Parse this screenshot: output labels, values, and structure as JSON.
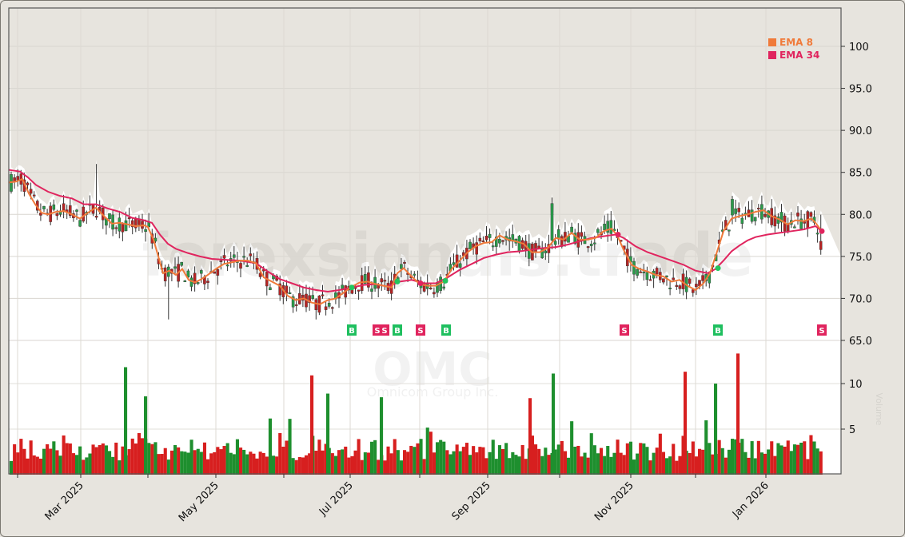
{
  "chart_data": {
    "type": "candlestick",
    "ticker": "OMC",
    "company": "Omnicom Group Inc.",
    "watermark": "forexsignals.trade",
    "x_axis": {
      "tick_labels": [
        "Mar 2025",
        "May 2025",
        "Jul 2025",
        "Sep 2025",
        "Nov 2025",
        "Jan 2026"
      ],
      "range": [
        "Feb 2025",
        "Jan 2026"
      ]
    },
    "price_axis": {
      "ticks": [
        "100",
        "95.0",
        "90.0",
        "85.0",
        "80.0",
        "75.0",
        "70.0",
        "65.0"
      ],
      "ylim": [
        62,
        104
      ]
    },
    "volume_axis": {
      "ticks": [
        "10",
        "5"
      ],
      "label": "Volume"
    },
    "legend": [
      {
        "label": "EMA 8",
        "color": "#f07a3a"
      },
      {
        "label": "EMA 34",
        "color": "#e0245e"
      }
    ],
    "signals": [
      {
        "type": "B",
        "x_label": "early Jul 2025"
      },
      {
        "type": "S",
        "x_label": "mid Jul 2025"
      },
      {
        "type": "S",
        "x_label": "mid Jul 2025"
      },
      {
        "type": "B",
        "x_label": "late Jul 2025"
      },
      {
        "type": "S",
        "x_label": "early Aug 2025"
      },
      {
        "type": "B",
        "x_label": "mid Aug 2025"
      },
      {
        "type": "S",
        "x_label": "late Oct 2025"
      },
      {
        "type": "B",
        "x_label": "early Dec 2025"
      },
      {
        "type": "S",
        "x_label": "late Jan 2026"
      }
    ],
    "ema8": [
      [
        11,
        83.8
      ],
      [
        20,
        83.9
      ],
      [
        28,
        84.2
      ],
      [
        36,
        82.5
      ],
      [
        44,
        81.2
      ],
      [
        52,
        80.2
      ],
      [
        60,
        80.0
      ],
      [
        70,
        80.3
      ],
      [
        80,
        80.4
      ],
      [
        90,
        80.0
      ],
      [
        100,
        79.5
      ],
      [
        110,
        80.2
      ],
      [
        120,
        80.8
      ],
      [
        130,
        79.8
      ],
      [
        140,
        78.9
      ],
      [
        150,
        79.0
      ],
      [
        160,
        78.8
      ],
      [
        170,
        78.6
      ],
      [
        180,
        78.7
      ],
      [
        185,
        78.5
      ],
      [
        192,
        77.0
      ],
      [
        198,
        75.0
      ],
      [
        204,
        73.0
      ],
      [
        212,
        73.3
      ],
      [
        220,
        72.8
      ],
      [
        228,
        73.5
      ],
      [
        236,
        72.2
      ],
      [
        244,
        71.9
      ],
      [
        252,
        72.3
      ],
      [
        260,
        72.8
      ],
      [
        270,
        73.5
      ],
      [
        280,
        74.1
      ],
      [
        290,
        74.3
      ],
      [
        300,
        74.5
      ],
      [
        310,
        74.5
      ],
      [
        320,
        74.2
      ],
      [
        330,
        72.5
      ],
      [
        340,
        72.0
      ],
      [
        350,
        71.5
      ],
      [
        360,
        70.3
      ],
      [
        370,
        69.8
      ],
      [
        380,
        70.0
      ],
      [
        390,
        69.5
      ],
      [
        400,
        69.3
      ],
      [
        410,
        69.8
      ],
      [
        420,
        70.0
      ],
      [
        430,
        70.7
      ],
      [
        440,
        71.4
      ],
      [
        450,
        71.9
      ],
      [
        460,
        72.0
      ],
      [
        470,
        71.7
      ],
      [
        480,
        71.5
      ],
      [
        490,
        71.3
      ],
      [
        497,
        73.0
      ],
      [
        505,
        73.6
      ],
      [
        515,
        72.6
      ],
      [
        525,
        71.7
      ],
      [
        535,
        71.5
      ],
      [
        545,
        71.5
      ],
      [
        555,
        72.0
      ],
      [
        565,
        73.5
      ],
      [
        575,
        74.5
      ],
      [
        585,
        75.5
      ],
      [
        595,
        76.2
      ],
      [
        605,
        76.6
      ],
      [
        615,
        76.7
      ],
      [
        625,
        77.5
      ],
      [
        635,
        77.0
      ],
      [
        645,
        76.8
      ],
      [
        655,
        76.5
      ],
      [
        665,
        75.5
      ],
      [
        675,
        75.5
      ],
      [
        685,
        76.0
      ],
      [
        695,
        77.2
      ],
      [
        705,
        77.0
      ],
      [
        715,
        77.8
      ],
      [
        725,
        77.0
      ],
      [
        735,
        77.0
      ],
      [
        745,
        77.2
      ],
      [
        755,
        78.0
      ],
      [
        765,
        78.3
      ],
      [
        772,
        77.5
      ],
      [
        780,
        75.8
      ],
      [
        790,
        74.0
      ],
      [
        800,
        73.5
      ],
      [
        810,
        73.2
      ],
      [
        820,
        72.8
      ],
      [
        830,
        72.6
      ],
      [
        840,
        72.0
      ],
      [
        850,
        72.2
      ],
      [
        860,
        71.5
      ],
      [
        870,
        71.0
      ],
      [
        880,
        71.8
      ],
      [
        888,
        73.0
      ],
      [
        895,
        75.0
      ],
      [
        905,
        78.0
      ],
      [
        915,
        79.5
      ],
      [
        925,
        79.8
      ],
      [
        935,
        80.0
      ],
      [
        945,
        80.3
      ],
      [
        955,
        80.5
      ],
      [
        965,
        79.8
      ],
      [
        975,
        79.4
      ],
      [
        985,
        78.8
      ],
      [
        995,
        79.3
      ],
      [
        1005,
        79.2
      ],
      [
        1015,
        79.5
      ],
      [
        1020,
        79.0
      ],
      [
        1028,
        78.0
      ]
    ],
    "ema34": [
      [
        11,
        85.3
      ],
      [
        25,
        85.1
      ],
      [
        35,
        84.4
      ],
      [
        45,
        83.5
      ],
      [
        60,
        82.7
      ],
      [
        75,
        82.2
      ],
      [
        90,
        81.9
      ],
      [
        105,
        81.2
      ],
      [
        120,
        81.2
      ],
      [
        135,
        80.7
      ],
      [
        150,
        80.3
      ],
      [
        165,
        79.6
      ],
      [
        180,
        79.3
      ],
      [
        190,
        79.0
      ],
      [
        200,
        77.6
      ],
      [
        210,
        76.5
      ],
      [
        220,
        75.9
      ],
      [
        235,
        75.4
      ],
      [
        250,
        75.0
      ],
      [
        265,
        74.7
      ],
      [
        280,
        74.6
      ],
      [
        300,
        74.5
      ],
      [
        320,
        74.2
      ],
      [
        335,
        73.2
      ],
      [
        350,
        72.3
      ],
      [
        365,
        71.8
      ],
      [
        380,
        71.3
      ],
      [
        395,
        71.0
      ],
      [
        410,
        70.8
      ],
      [
        425,
        71.0
      ],
      [
        440,
        71.3
      ],
      [
        455,
        71.6
      ],
      [
        470,
        71.7
      ],
      [
        485,
        71.4
      ],
      [
        500,
        72.0
      ],
      [
        515,
        72.2
      ],
      [
        530,
        71.8
      ],
      [
        545,
        71.8
      ],
      [
        560,
        72.5
      ],
      [
        575,
        73.4
      ],
      [
        590,
        74.1
      ],
      [
        605,
        74.8
      ],
      [
        620,
        75.2
      ],
      [
        635,
        75.5
      ],
      [
        650,
        75.6
      ],
      [
        665,
        75.8
      ],
      [
        680,
        76.0
      ],
      [
        695,
        76.1
      ],
      [
        710,
        76.4
      ],
      [
        725,
        76.8
      ],
      [
        740,
        77.2
      ],
      [
        755,
        77.4
      ],
      [
        770,
        77.6
      ],
      [
        780,
        77.2
      ],
      [
        795,
        76.2
      ],
      [
        810,
        75.5
      ],
      [
        825,
        75.0
      ],
      [
        840,
        74.5
      ],
      [
        855,
        74.0
      ],
      [
        870,
        73.3
      ],
      [
        885,
        73.0
      ],
      [
        895,
        73.5
      ],
      [
        905,
        74.5
      ],
      [
        915,
        75.6
      ],
      [
        925,
        76.3
      ],
      [
        935,
        76.9
      ],
      [
        945,
        77.3
      ],
      [
        960,
        77.6
      ],
      [
        975,
        77.8
      ],
      [
        990,
        78.0
      ],
      [
        1005,
        78.2
      ],
      [
        1020,
        78.6
      ],
      [
        1028,
        78.0
      ]
    ]
  }
}
